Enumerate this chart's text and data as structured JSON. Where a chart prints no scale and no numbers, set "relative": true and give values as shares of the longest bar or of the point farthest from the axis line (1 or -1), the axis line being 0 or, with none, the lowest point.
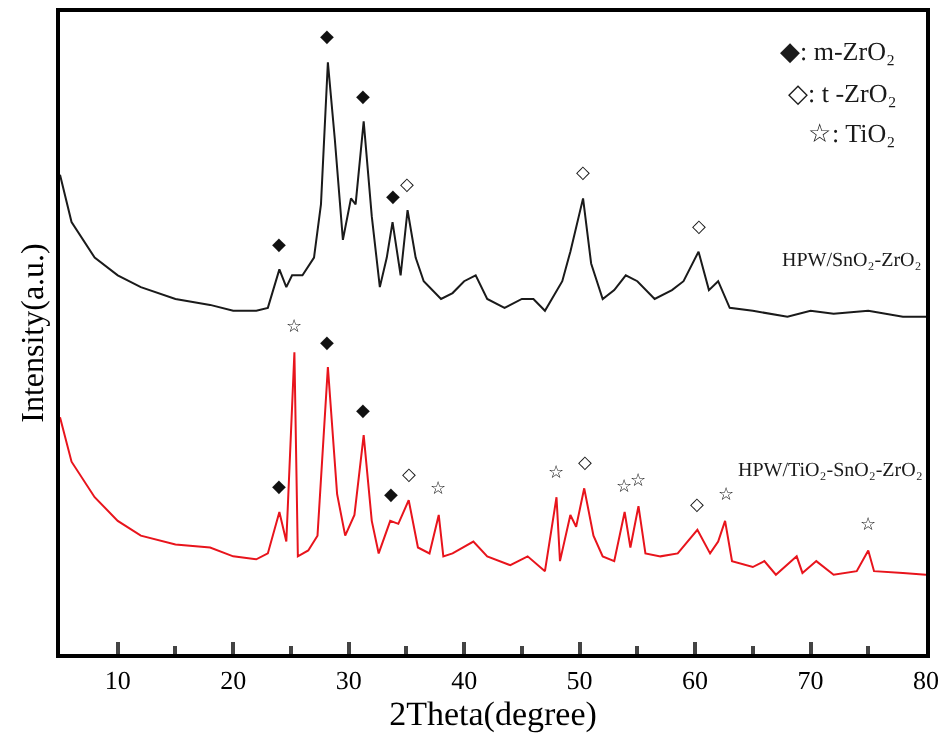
{
  "chart_data": {
    "type": "line",
    "relative": true,
    "xlabel": "2Theta(degree)",
    "ylabel": "Intensity(a.u.)",
    "xlim": [
      5,
      80
    ],
    "xticks": [
      10,
      {
        "value": 15,
        "label": null
      },
      20,
      {
        "value": 25,
        "label": null
      },
      30,
      {
        "value": 35,
        "label": null
      },
      40,
      {
        "value": 45,
        "label": null
      },
      50,
      {
        "value": 55,
        "label": null
      },
      60,
      {
        "value": 65,
        "label": null
      },
      70,
      {
        "value": 75,
        "label": null
      },
      80
    ],
    "legend": false,
    "marker": "none",
    "line_style": "solid",
    "series": [
      {
        "name": "HPW/SnO₂-ZrO₂",
        "color": "#1a1a1a",
        "x": [
          5,
          6,
          8,
          10,
          12,
          15,
          18,
          20,
          22,
          23,
          24,
          24.6,
          25.1,
          26,
          27,
          27.6,
          28.2,
          28.8,
          29.5,
          30.2,
          30.6,
          31.3,
          32,
          32.7,
          33.3,
          33.8,
          34.5,
          35.1,
          35.8,
          36.5,
          38,
          39,
          40,
          41,
          42,
          43.5,
          45,
          46,
          47,
          48.5,
          49.2,
          50.3,
          51,
          52,
          53,
          54,
          55,
          56.5,
          58,
          59,
          60.3,
          61.2,
          62,
          63,
          65,
          68,
          70,
          72,
          75,
          78,
          80
        ],
        "values": [
          0.81,
          0.73,
          0.67,
          0.64,
          0.62,
          0.6,
          0.59,
          0.58,
          0.58,
          0.585,
          0.65,
          0.62,
          0.64,
          0.64,
          0.67,
          0.76,
          1.0,
          0.87,
          0.7,
          0.77,
          0.76,
          0.9,
          0.74,
          0.62,
          0.67,
          0.73,
          0.64,
          0.75,
          0.67,
          0.63,
          0.6,
          0.61,
          0.63,
          0.64,
          0.6,
          0.585,
          0.6,
          0.6,
          0.58,
          0.63,
          0.68,
          0.77,
          0.66,
          0.6,
          0.615,
          0.64,
          0.63,
          0.6,
          0.615,
          0.63,
          0.68,
          0.615,
          0.63,
          0.585,
          0.58,
          0.57,
          0.58,
          0.575,
          0.58,
          0.57,
          0.57
        ]
      },
      {
        "name": "HPW/TiO₂-SnO₂-ZrO₂",
        "color": "#e8141c",
        "x": [
          5,
          6,
          8,
          10,
          12,
          15,
          18,
          20,
          22,
          23,
          24,
          24.6,
          25.3,
          25.6,
          26.5,
          27.3,
          28.2,
          29,
          29.7,
          30.5,
          31.3,
          32,
          32.6,
          33.6,
          34.3,
          35.2,
          36,
          37,
          37.8,
          38.2,
          39,
          40.8,
          42,
          44,
          45.5,
          47,
          48,
          48.3,
          49.2,
          49.7,
          50.4,
          51.2,
          52,
          53,
          53.9,
          54.4,
          55.1,
          55.7,
          57,
          58.5,
          60.2,
          61.3,
          62,
          62.6,
          63.2,
          65,
          66,
          67,
          68.8,
          69.3,
          70.5,
          72,
          74,
          75,
          75.5,
          78,
          80
        ],
        "values": [
          0.4,
          0.325,
          0.265,
          0.225,
          0.2,
          0.185,
          0.18,
          0.165,
          0.16,
          0.17,
          0.24,
          0.19,
          0.51,
          0.165,
          0.175,
          0.2,
          0.485,
          0.27,
          0.2,
          0.235,
          0.37,
          0.225,
          0.17,
          0.225,
          0.22,
          0.26,
          0.18,
          0.17,
          0.235,
          0.165,
          0.17,
          0.19,
          0.165,
          0.15,
          0.165,
          0.14,
          0.265,
          0.157,
          0.235,
          0.215,
          0.28,
          0.2,
          0.165,
          0.157,
          0.24,
          0.18,
          0.25,
          0.17,
          0.165,
          0.17,
          0.21,
          0.17,
          0.19,
          0.225,
          0.157,
          0.147,
          0.157,
          0.134,
          0.165,
          0.137,
          0.157,
          0.134,
          0.14,
          0.175,
          0.14,
          0.137,
          0.134
        ]
      }
    ],
    "annotations": [
      "◆: m-ZrO₂",
      "◇: t -ZrO₂",
      "☆: TiO₂",
      {
        "text": "◆",
        "x": 24,
        "y": 0.65
      },
      {
        "text": "◆",
        "x": 28.2,
        "y": 1.0
      },
      {
        "text": "◆",
        "x": 31.3,
        "y": 0.9
      },
      {
        "text": "◆",
        "x": 33.8,
        "y": 0.73
      },
      {
        "text": "◇",
        "x": 35.1,
        "y": 0.75
      },
      {
        "text": "◇",
        "x": 50.3,
        "y": 0.77
      },
      {
        "text": "◇",
        "x": 60.3,
        "y": 0.68
      },
      {
        "text": "☆",
        "x": 25.3,
        "y": 0.51
      },
      {
        "text": "◆",
        "x": 28.2,
        "y": 0.485
      },
      {
        "text": "◆",
        "x": 31.3,
        "y": 0.37
      },
      {
        "text": "◆",
        "x": 24,
        "y": 0.24
      },
      {
        "text": "◆",
        "x": 33.6,
        "y": 0.225
      },
      {
        "text": "◇",
        "x": 35.2,
        "y": 0.26
      },
      {
        "text": "☆",
        "x": 37.8,
        "y": 0.235
      },
      {
        "text": "☆",
        "x": 48,
        "y": 0.265
      },
      {
        "text": "◇",
        "x": 50.4,
        "y": 0.28
      },
      {
        "text": "☆",
        "x": 53.9,
        "y": 0.24
      },
      {
        "text": "☆",
        "x": 55.1,
        "y": 0.25
      },
      {
        "text": "◇",
        "x": 60.2,
        "y": 0.21
      },
      {
        "text": "☆",
        "x": 62.6,
        "y": 0.225
      },
      {
        "text": "☆",
        "x": 75,
        "y": 0.175
      }
    ]
  }
}
